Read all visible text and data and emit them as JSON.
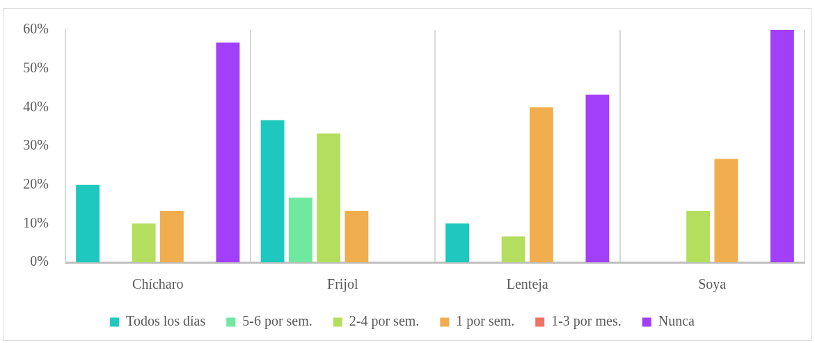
{
  "chart_data": {
    "type": "bar",
    "categories": [
      "Chícharo",
      "Frijol",
      "Lenteja",
      "Soya"
    ],
    "series": [
      {
        "name": "Todos los días",
        "color": "#1ec8bf",
        "values": [
          20,
          36.7,
          10,
          0
        ]
      },
      {
        "name": "5-6 por sem.",
        "color": "#6fe8a0",
        "values": [
          0,
          16.7,
          0,
          0
        ]
      },
      {
        "name": "2-4 por sem.",
        "color": "#b4de5e",
        "values": [
          10,
          33.3,
          6.7,
          13.3
        ]
      },
      {
        "name": "1 por sem.",
        "color": "#f0ae4e",
        "values": [
          13.3,
          13.3,
          40,
          26.7
        ]
      },
      {
        "name": "1-3 por mes.",
        "color": "#f07262",
        "values": [
          0,
          0,
          0,
          0
        ]
      },
      {
        "name": "Nunca",
        "color": "#a23ff8",
        "values": [
          56.7,
          0,
          43.3,
          60
        ]
      }
    ],
    "ylim": [
      0,
      60
    ],
    "yticks": [
      {
        "value": 0,
        "label": "0%"
      },
      {
        "value": 10,
        "label": "10%"
      },
      {
        "value": 20,
        "label": "20%"
      },
      {
        "value": 30,
        "label": "30%"
      },
      {
        "value": 40,
        "label": "40%"
      },
      {
        "value": 50,
        "label": "50%"
      },
      {
        "value": 60,
        "label": "60%"
      }
    ],
    "grid": "x",
    "legend": "bottom"
  }
}
